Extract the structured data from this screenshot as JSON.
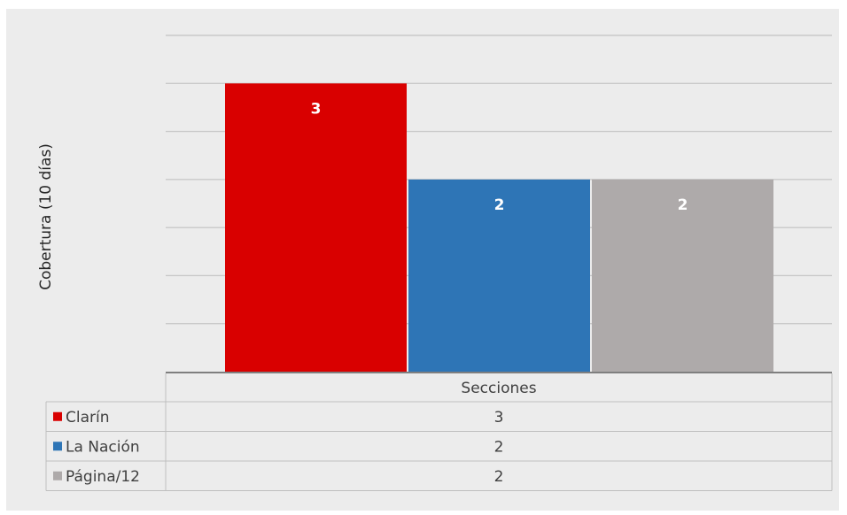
{
  "chart_data": {
    "type": "bar",
    "categories": [
      "Secciones"
    ],
    "series": [
      {
        "name": "Clarín",
        "values": [
          3
        ],
        "color": "#d90000"
      },
      {
        "name": "La Nación",
        "values": [
          2
        ],
        "color": "#2e75b6"
      },
      {
        "name": "Página/12",
        "values": [
          2
        ],
        "color": "#aeaaaa"
      }
    ],
    "title": "",
    "xlabel": "",
    "ylabel": "Cobertura (10 días)",
    "ylim": [
      0,
      3.5
    ],
    "gridlines": true,
    "legend": "data-table",
    "data_labels": true
  }
}
